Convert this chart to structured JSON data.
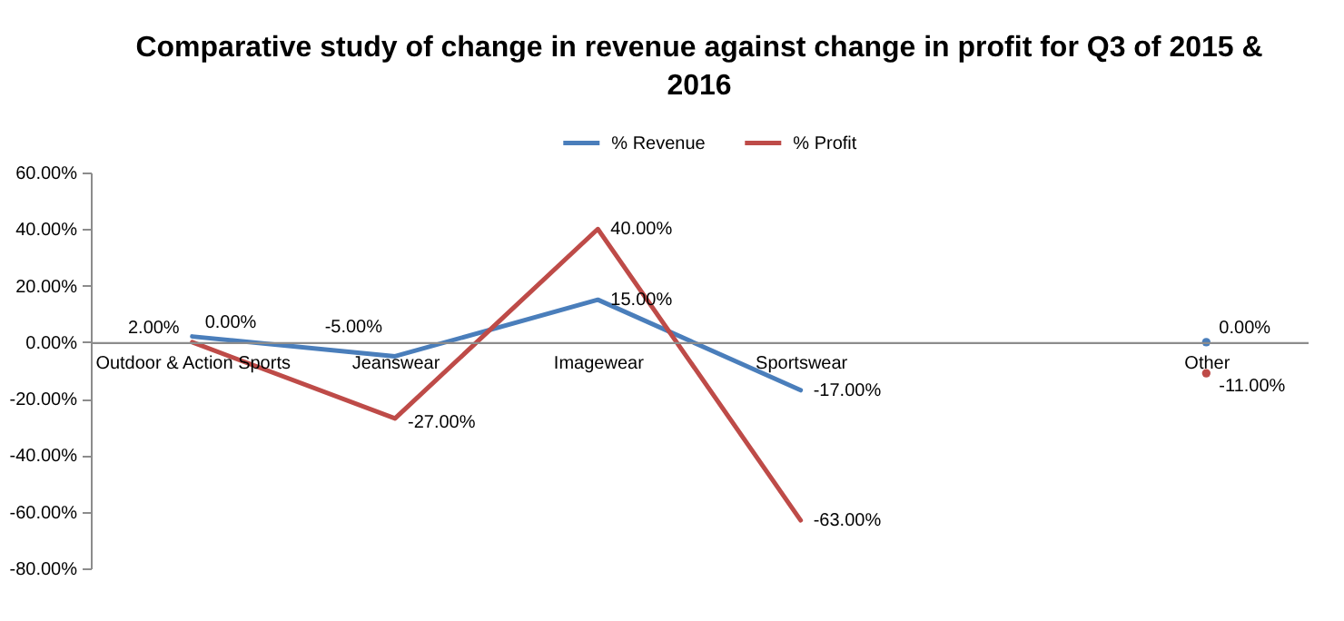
{
  "chart_data": {
    "type": "line",
    "title": "Comparative study of change in revenue against change in profit for Q3 of 2015 & 2016",
    "categories": [
      "Outdoor & Action Sports",
      "Jeanswear",
      "Imagewear",
      "Sportswear",
      null,
      "Other"
    ],
    "series": [
      {
        "name": "% Revenue",
        "color": "#4a7ebb",
        "values": [
          2,
          -5,
          15,
          -17,
          null,
          0
        ],
        "value_labels": [
          "2.00%",
          "-5.00%",
          "15.00%",
          "-17.00%",
          null,
          "0.00%"
        ]
      },
      {
        "name": "% Profit",
        "color": "#be4b48",
        "values": [
          0,
          -27,
          40,
          -63,
          null,
          -11
        ],
        "value_labels": [
          "0.00%",
          "-27.00%",
          "40.00%",
          "-63.00%",
          null,
          "-11.00%"
        ]
      }
    ],
    "ylim": [
      -80,
      60
    ],
    "yticks": [
      {
        "value": 60,
        "label": "60.00%"
      },
      {
        "value": 40,
        "label": "40.00%"
      },
      {
        "value": 20,
        "label": "20.00%"
      },
      {
        "value": 0,
        "label": "0.00%"
      },
      {
        "value": -20,
        "label": "-20.00%"
      },
      {
        "value": -40,
        "label": "-40.00%"
      },
      {
        "value": -60,
        "label": "-60.00%"
      },
      {
        "value": -80,
        "label": "-80.00%"
      }
    ],
    "legend": "top",
    "grid": false
  }
}
